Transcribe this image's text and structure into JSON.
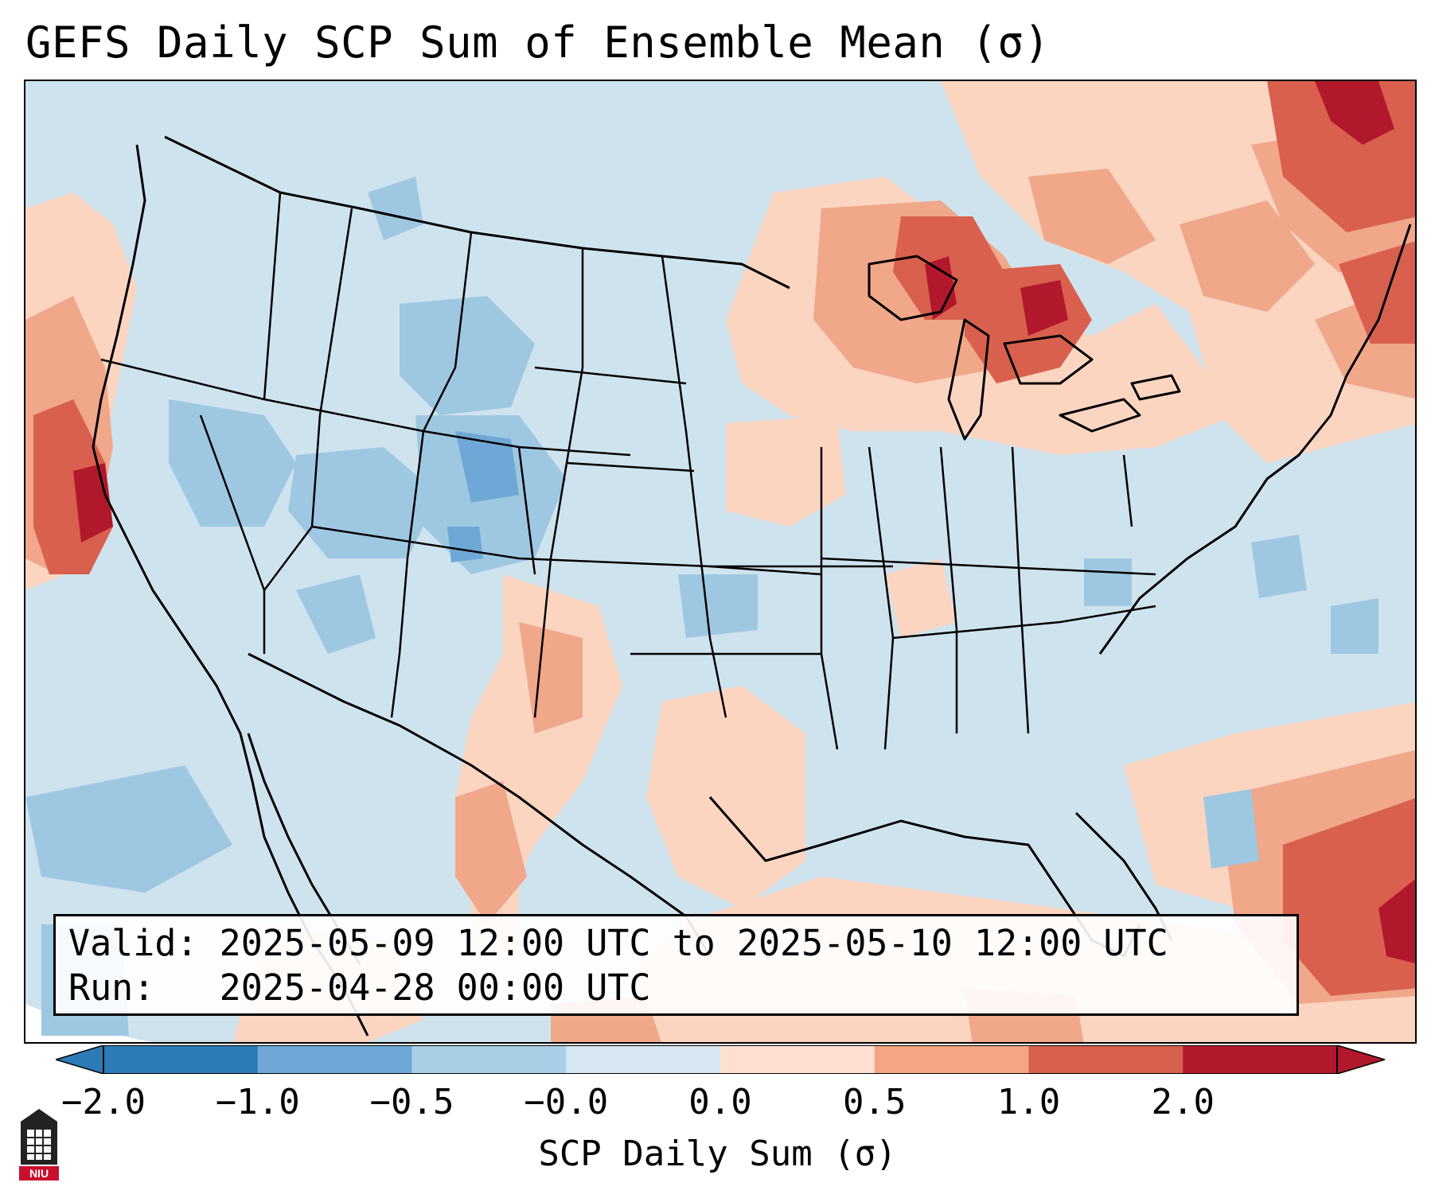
{
  "title": "GEFS Daily SCP Sum of Ensemble Mean (σ)",
  "info": {
    "valid_line": "Valid: 2025-05-09 12:00 UTC to 2025-05-10 12:00 UTC",
    "run_line": "Run:   2025-04-28 00:00 UTC"
  },
  "colorbar": {
    "label": "SCP Daily Sum (σ)",
    "ticks": [
      "−2.0",
      "−1.0",
      "−0.5",
      "−0.0",
      "0.0",
      "0.5",
      "1.0",
      "2.0"
    ],
    "colors": [
      "#2c7bb6",
      "#6fa8d6",
      "#a9cfe6",
      "#d6e7f1",
      "#fde0d2",
      "#f4a583",
      "#d6604d",
      "#b2182b"
    ],
    "extend": "both"
  },
  "map": {
    "region": "CONUS",
    "background_color": "#cfe3ee",
    "anomaly_colors": {
      "strong_negative": "#6fa8d6",
      "negative": "#9ec8e2",
      "neutral": "#cfe3ee",
      "positive": "#fcd5c0",
      "moderate_positive": "#f0a78a",
      "strong_positive": "#d9604e",
      "extreme_positive": "#b2182b"
    }
  },
  "logo": {
    "text": "NIU",
    "icon": "university-tower-icon"
  }
}
